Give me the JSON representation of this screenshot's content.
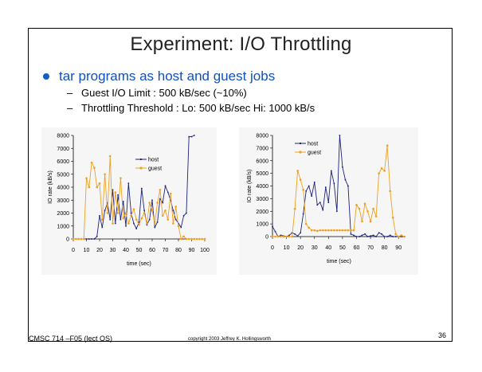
{
  "slide": {
    "title": "Experiment: I/O Throttling",
    "bullet": "tar programs as host and guest jobs",
    "subbullets": [
      "Guest I/O Limit : 500 kB/sec (~10%)",
      "Throttling Threshold : Lo: 500 kB/sec Hi: 1000 kB/s"
    ],
    "dash": "–",
    "footer_left": "CMSC 714 –F05 (lect OS)",
    "footer_center": "copyright 2003 Jeffrey K. Hollingsworth",
    "page_number": "36"
  },
  "colors": {
    "host": "#1a237e",
    "guest": "#f0a020",
    "bullet": "#1060c8"
  },
  "chart_data": [
    {
      "type": "line",
      "xlabel": "time (sec)",
      "ylabel": "IO rate (kB/s)",
      "xlim": [
        0,
        100
      ],
      "ylim": [
        0,
        8000
      ],
      "xticks": [
        0,
        10,
        20,
        30,
        40,
        50,
        60,
        70,
        80,
        90,
        100
      ],
      "yticks": [
        0,
        1000,
        2000,
        3000,
        4000,
        5000,
        6000,
        7000,
        8000
      ],
      "legend": "top-right",
      "series": [
        {
          "name": "host",
          "x": [
            0,
            2,
            4,
            6,
            8,
            10,
            12,
            14,
            16,
            18,
            20,
            22,
            24,
            26,
            28,
            30,
            32,
            34,
            36,
            38,
            40,
            42,
            44,
            46,
            48,
            50,
            52,
            54,
            56,
            58,
            60,
            62,
            64,
            66,
            68,
            70,
            72,
            74,
            76,
            78,
            80,
            82,
            84,
            86,
            88,
            90,
            92
          ],
          "y": [
            0,
            0,
            0,
            0,
            0,
            0,
            0,
            0,
            0,
            200,
            1800,
            900,
            2200,
            2800,
            1500,
            3800,
            1200,
            3400,
            1500,
            2900,
            1000,
            4300,
            2000,
            1200,
            800,
            1300,
            3900,
            2200,
            1100,
            1500,
            3000,
            900,
            1300,
            3100,
            2800,
            4100,
            3600,
            3000,
            2200,
            1500,
            1200,
            900,
            1800,
            2000,
            7900,
            7900,
            8000
          ]
        },
        {
          "name": "guest",
          "x": [
            0,
            2,
            4,
            6,
            8,
            10,
            12,
            14,
            16,
            18,
            20,
            22,
            24,
            26,
            28,
            30,
            32,
            34,
            36,
            38,
            40,
            42,
            44,
            46,
            48,
            50,
            52,
            54,
            56,
            58,
            60,
            62,
            64,
            66,
            68,
            70,
            72,
            74,
            76,
            78,
            80,
            82,
            84,
            86,
            88,
            90,
            92,
            94,
            96,
            98,
            100
          ],
          "y": [
            0,
            0,
            0,
            0,
            0,
            4700,
            4000,
            5900,
            5500,
            4000,
            4300,
            1500,
            5000,
            2000,
            6400,
            1200,
            3600,
            2000,
            4700,
            1600,
            2000,
            1200,
            1800,
            2300,
            1500,
            1100,
            1600,
            2000,
            1200,
            2800,
            2200,
            1200,
            2800,
            3800,
            1800,
            2200,
            1500,
            3500,
            1200,
            2500,
            1000,
            0,
            200,
            0,
            0,
            0,
            0,
            0,
            0,
            0,
            0
          ]
        }
      ]
    },
    {
      "type": "line",
      "xlabel": "time (sec)",
      "ylabel": "IO rate (kB/s)",
      "xlim": [
        0,
        95
      ],
      "ylim": [
        0,
        8000
      ],
      "xticks": [
        0,
        10,
        20,
        30,
        40,
        50,
        60,
        70,
        80,
        90
      ],
      "yticks": [
        0,
        1000,
        2000,
        3000,
        4000,
        5000,
        6000,
        7000,
        8000
      ],
      "legend": "top-right",
      "series": [
        {
          "name": "host",
          "x": [
            0,
            2,
            4,
            6,
            8,
            10,
            12,
            14,
            16,
            18,
            20,
            22,
            24,
            26,
            28,
            30,
            32,
            34,
            36,
            38,
            40,
            42,
            44,
            46,
            48,
            50,
            52,
            54,
            56,
            58,
            60,
            62,
            64,
            66,
            68,
            70,
            72,
            74,
            76,
            78,
            80,
            82,
            84,
            86,
            88,
            90,
            92,
            94
          ],
          "y": [
            800,
            400,
            0,
            100,
            50,
            0,
            100,
            300,
            200,
            50,
            300,
            1800,
            3600,
            4000,
            3200,
            4300,
            2500,
            2700,
            2100,
            3900,
            2700,
            5200,
            4200,
            2000,
            8000,
            5500,
            4500,
            4000,
            200,
            100,
            0,
            0,
            100,
            200,
            0,
            50,
            100,
            0,
            300,
            200,
            0,
            0,
            100,
            0,
            0,
            0,
            0,
            0
          ]
        },
        {
          "name": "guest",
          "x": [
            0,
            2,
            4,
            6,
            8,
            10,
            12,
            14,
            16,
            18,
            20,
            22,
            24,
            26,
            28,
            30,
            32,
            34,
            36,
            38,
            40,
            42,
            44,
            46,
            48,
            50,
            52,
            54,
            56,
            58,
            60,
            62,
            64,
            66,
            68,
            70,
            72,
            74,
            76,
            78,
            80,
            82,
            84,
            86,
            88,
            90,
            92,
            94
          ],
          "y": [
            0,
            0,
            0,
            0,
            0,
            0,
            0,
            0,
            2200,
            5200,
            4500,
            3700,
            1000,
            700,
            500,
            500,
            450,
            500,
            500,
            500,
            500,
            500,
            500,
            500,
            500,
            500,
            500,
            500,
            500,
            500,
            2500,
            2200,
            1200,
            2600,
            2000,
            1200,
            2200,
            1600,
            5000,
            5400,
            5200,
            7200,
            3600,
            1500,
            200,
            0,
            100,
            0
          ]
        }
      ]
    }
  ]
}
